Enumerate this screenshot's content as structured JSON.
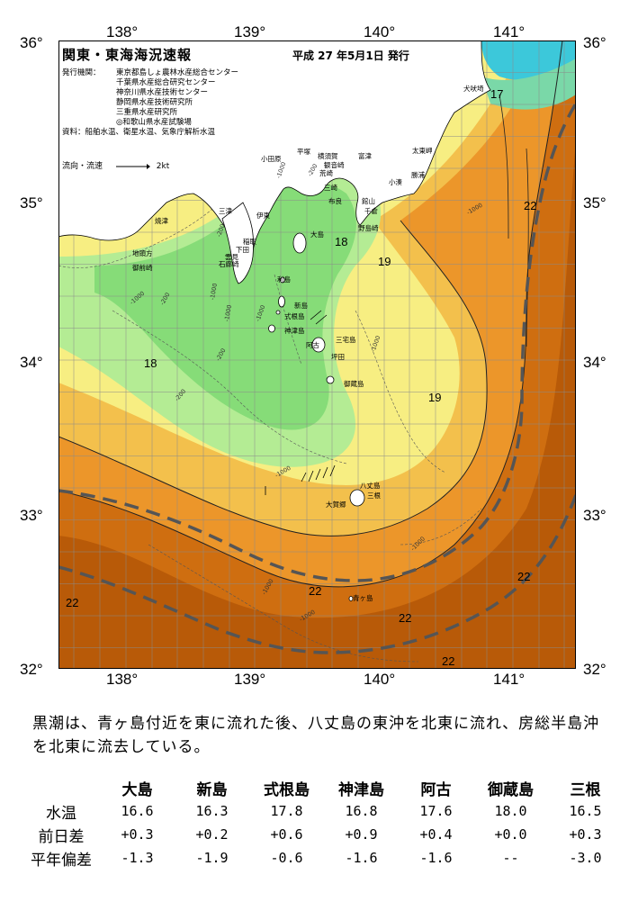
{
  "header": {
    "title": "関東・東海海況速報",
    "date": "平成 27 年5月1日 発行"
  },
  "organizations": {
    "label": "発行機関：",
    "items": [
      "東京都島しょ農林水産総合センター",
      "千葉県水産総合研究センター",
      "神奈川県水産技術センター",
      "静岡県水産技術研究所",
      "三重県水産研究所",
      "◎和歌山県水産試験場"
    ],
    "data_label": "資料：",
    "data_sources": "船舶水温、衛星水温、気象庁解析水温"
  },
  "flow_legend": {
    "label": "流向・流速",
    "speed": "2kt"
  },
  "axes": {
    "lon_labels": [
      "138°",
      "139°",
      "140°",
      "141°"
    ],
    "lat_labels": [
      "36°",
      "35°",
      "34°",
      "33°",
      "32°"
    ]
  },
  "isotherm_labels": [
    "17",
    "18",
    "19",
    "18",
    "19",
    "22",
    "22",
    "22",
    "22",
    "22",
    "22"
  ],
  "depth_labels": [
    "-1000",
    "-200",
    "-200",
    "-1000",
    "-200",
    "-1000",
    "-1000",
    "-1000",
    "-1000",
    "-200",
    "-1000",
    "-1000",
    "-1000",
    "-1000",
    "-1000",
    "-200"
  ],
  "places": {
    "inubosaki": "犬吠埼",
    "taitomisaki": "太東岬",
    "katsuura": "勝浦",
    "kominato": "小湊",
    "mera": "布良",
    "nojimazaki": "野島崎",
    "futtsu": "富津",
    "tateyama": "館山",
    "chikura": "千倉",
    "hirazuka": "平塚",
    "odawara": "小田原",
    "yokosuka": "横須賀",
    "kannonzaki": "観音崎",
    "arasaki": "荒崎",
    "miura": "三崎",
    "yaizu": "焼津",
    "mitohama": "三津",
    "izu": "伊東",
    "inatori": "稲取",
    "shimoda": "下田",
    "iroza": "石廊崎",
    "omaezaki": "御前崎",
    "jigata": "地頭方",
    "nankai": "雲見",
    "oshima": "大島",
    "toshima": "利島",
    "niijima": "新島",
    "shikinejima": "式根島",
    "kozushima": "神津島",
    "miyakejima": "三宅島",
    "ako": "阿古",
    "tsubota": "坪田",
    "mikurajima": "御蔵島",
    "hachijojima": "八丈島",
    "mitsune": "三根",
    "okago": "大賀郷",
    "aogashima": "青ヶ島"
  },
  "summary": "黒潮は、青ヶ島付近を東に流れた後、八丈島の東沖を北東に流れ、房総半島沖を北東に流去している。",
  "table": {
    "columns": [
      "大島",
      "新島",
      "式根島",
      "神津島",
      "阿古",
      "御蔵島",
      "三根"
    ],
    "rows": [
      {
        "label": "水温",
        "values": [
          "16.6",
          "16.3",
          "17.8",
          "16.8",
          "17.6",
          "18.0",
          "16.5"
        ]
      },
      {
        "label": "前日差",
        "values": [
          "+0.3",
          "+0.2",
          "+0.6",
          "+0.9",
          "+0.4",
          "+0.0",
          "+0.3"
        ]
      },
      {
        "label": "平年偏差",
        "values": [
          "-1.3",
          "-1.9",
          "-0.6",
          "-1.6",
          "-1.6",
          "--",
          "-3.0"
        ]
      }
    ]
  },
  "colors": {
    "cold_cyan": "#38c8d8",
    "green_light": "#a8e890",
    "green": "#7ed870",
    "yellow": "#f6ee80",
    "yellow_orange": "#f2c04a",
    "orange": "#ee9a2a",
    "dark_orange": "#d2700c",
    "brown": "#b85a08",
    "land": "#ffffff",
    "kuroshio_axis": "#555555"
  }
}
